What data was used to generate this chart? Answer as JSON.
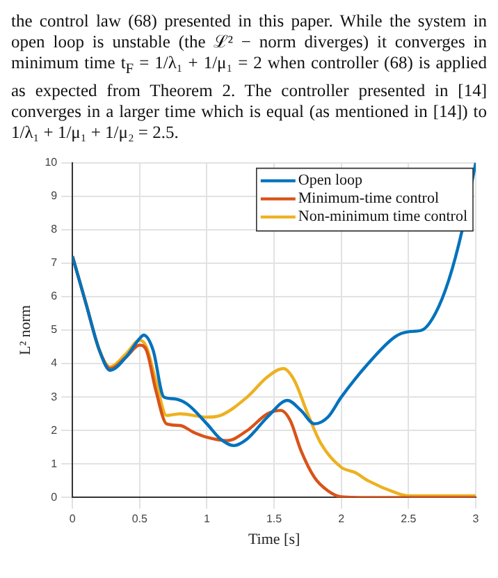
{
  "chart_data": {
    "type": "line",
    "annotations": [
      "the control law (68) presented in this paper. While the system in open loop is unstable (the ℒ² − norm diverges) it converges in minimum time t$_{F}$ = 1/λ₁ + 1/μ₁ = 2 when controller (68) is applied as expected from Theorem 2. The controller presented in [14] converges in a larger time which is equal (as mentioned in [14]) to 1/λ₁ + 1/μ₁ + 1/μ₂ = 2.5."
    ],
    "xlabel": "Time [s]",
    "ylabel": "L² norm",
    "xlim": [
      0,
      3
    ],
    "ylim": [
      0,
      10
    ],
    "xticks": [
      0,
      0.5,
      1,
      1.5,
      2,
      2.5,
      3
    ],
    "yticks": [
      0,
      1,
      2,
      3,
      4,
      5,
      6,
      7,
      8,
      9,
      10
    ],
    "grid": true,
    "legend": "top right",
    "marker": "none",
    "line_style": "solid",
    "series": [
      {
        "name": "Open loop",
        "color": "#0072bd",
        "x": [
          0,
          0.1,
          0.2,
          0.28,
          0.4,
          0.5,
          0.53,
          0.6,
          0.68,
          0.75,
          0.85,
          1.0,
          1.1,
          1.2,
          1.3,
          1.45,
          1.6,
          1.7,
          1.8,
          1.9,
          2.0,
          2.2,
          2.4,
          2.5,
          2.6,
          2.7,
          2.8,
          2.9,
          3.0
        ],
        "values": [
          7.2,
          5.8,
          4.4,
          3.8,
          4.2,
          4.75,
          4.85,
          4.4,
          3.0,
          2.95,
          2.8,
          2.2,
          1.75,
          1.55,
          1.75,
          2.4,
          2.9,
          2.6,
          2.2,
          2.4,
          3.0,
          4.0,
          4.8,
          4.95,
          5.0,
          5.5,
          6.5,
          8.0,
          10
        ]
      },
      {
        "name": "Minimum-time control",
        "color": "#d95319",
        "x": [
          0,
          0.1,
          0.2,
          0.28,
          0.4,
          0.5,
          0.55,
          0.62,
          0.7,
          0.8,
          0.9,
          1.0,
          1.15,
          1.3,
          1.45,
          1.55,
          1.62,
          1.7,
          1.8,
          1.9,
          2.0,
          2.2,
          3.0
        ],
        "values": [
          7.2,
          5.8,
          4.4,
          3.85,
          4.2,
          4.55,
          4.4,
          3.2,
          2.2,
          2.15,
          1.95,
          1.8,
          1.7,
          2.0,
          2.5,
          2.6,
          2.3,
          1.4,
          0.6,
          0.2,
          0.02,
          0,
          0
        ]
      },
      {
        "name": "Non-minimum time control",
        "color": "#edb120",
        "x": [
          0,
          0.1,
          0.2,
          0.28,
          0.4,
          0.5,
          0.55,
          0.62,
          0.7,
          0.8,
          1.0,
          1.1,
          1.3,
          1.45,
          1.57,
          1.65,
          1.75,
          1.85,
          2.0,
          2.1,
          2.2,
          2.4,
          2.5,
          3.0
        ],
        "values": [
          7.2,
          5.8,
          4.4,
          3.9,
          4.3,
          4.7,
          4.5,
          3.5,
          2.45,
          2.5,
          2.4,
          2.45,
          3.0,
          3.6,
          3.85,
          3.5,
          2.5,
          1.6,
          0.9,
          0.75,
          0.5,
          0.15,
          0.05,
          0.05
        ]
      }
    ]
  }
}
